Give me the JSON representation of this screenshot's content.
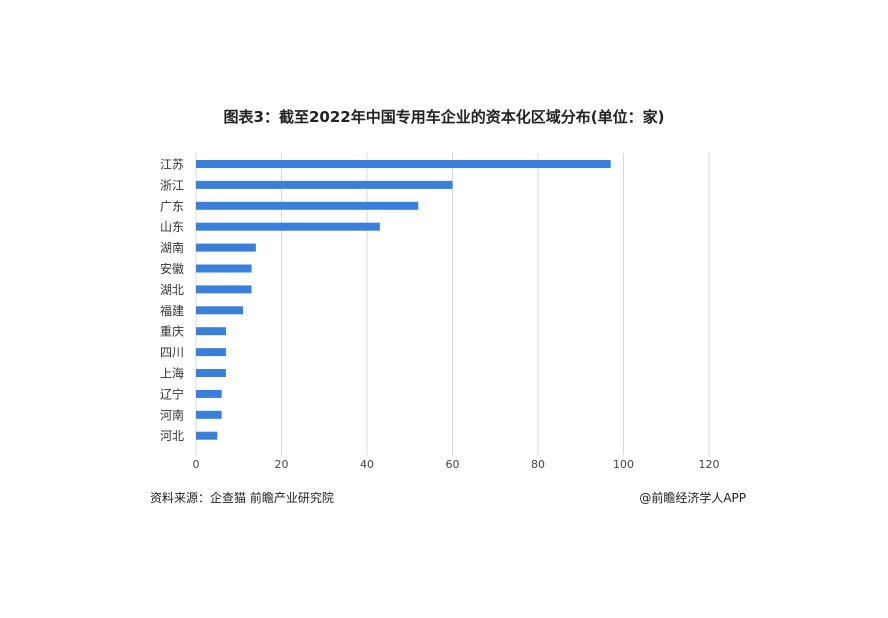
{
  "chart_data": {
    "type": "bar",
    "orientation": "horizontal",
    "title": "图表3：截至2022年中国专用车企业的资本化区域分布(单位：家)",
    "categories": [
      "江苏",
      "浙江",
      "广东",
      "山东",
      "湖南",
      "安徽",
      "湖北",
      "福建",
      "重庆",
      "四川",
      "上海",
      "辽宁",
      "河南",
      "河北"
    ],
    "values": [
      97,
      60,
      52,
      43,
      14,
      13,
      13,
      11,
      7,
      7,
      7,
      6,
      6,
      5
    ],
    "xlim": [
      0,
      120
    ],
    "xticks": [
      0,
      20,
      40,
      60,
      80,
      100,
      120
    ],
    "xlabel": "",
    "ylabel": "",
    "grid": "vertical",
    "bar_color": "#3a7fd9",
    "grid_color": "#d9d9d9"
  },
  "footer": {
    "source": "资料来源：企查猫 前瞻产业研究院",
    "credit": "@前瞻经济学人APP"
  }
}
